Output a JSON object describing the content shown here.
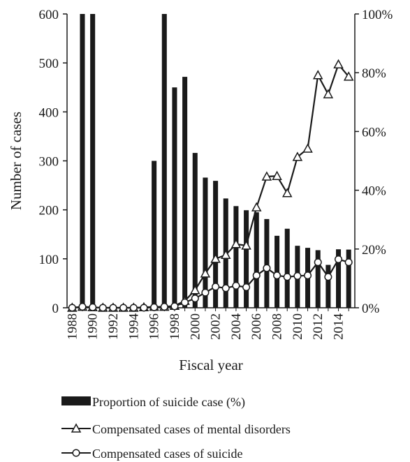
{
  "chart_data": {
    "type": "bar+line",
    "xlabel": "Fiscal year",
    "ylabel": "Number of cases",
    "ylim_left": [
      0,
      600
    ],
    "ylim_right": [
      0,
      100
    ],
    "left_ticks": [
      "0",
      "100",
      "200",
      "300",
      "400",
      "500",
      "600"
    ],
    "right_ticks": [
      "0%",
      "20%",
      "40%",
      "60%",
      "80%",
      "100%"
    ],
    "x_tick_labels": [
      "1988",
      "1990",
      "1992",
      "1994",
      "1996",
      "1998",
      "2000",
      "2002",
      "2004",
      "2006",
      "2008",
      "2010",
      "2012",
      "2014"
    ],
    "x": [
      1988,
      1989,
      1990,
      1991,
      1992,
      1993,
      1994,
      1995,
      1996,
      1997,
      1998,
      1999,
      2000,
      2001,
      2002,
      2003,
      2004,
      2005,
      2006,
      2007,
      2008,
      2009,
      2010,
      2011,
      2012,
      2013,
      2014,
      2015
    ],
    "series": [
      {
        "name": "Proportion of suicide case (%)",
        "kind": "bar",
        "axis": "right",
        "values": [
          0,
          100,
          100,
          0,
          0,
          0,
          0,
          0,
          50,
          100,
          75,
          78.6,
          52.7,
          44.3,
          43.2,
          37.2,
          34.6,
          33.2,
          32.5,
          30.2,
          24.5,
          26.9,
          21.1,
          20.4,
          19.6,
          14.6,
          19.9,
          19.8
        ]
      },
      {
        "name": "Compensated cases of mental disorders",
        "kind": "line",
        "axis": "left",
        "marker": "triangle",
        "values": [
          0,
          2,
          1,
          0,
          0,
          0,
          0,
          1,
          2,
          2,
          4,
          14,
          36,
          70,
          100,
          108,
          130,
          127,
          205,
          268,
          269,
          234,
          308,
          325,
          475,
          436,
          497,
          472
        ]
      },
      {
        "name": "Compensated cases of suicide",
        "kind": "line",
        "axis": "left",
        "marker": "circle",
        "values": [
          0,
          2,
          1,
          0,
          0,
          0,
          0,
          0,
          1,
          2,
          3,
          11,
          19,
          31,
          43,
          40,
          45,
          42,
          66,
          81,
          66,
          63,
          65,
          66,
          93,
          63,
          99,
          93
        ]
      }
    ],
    "legend_position": "bottom",
    "grid": false
  }
}
